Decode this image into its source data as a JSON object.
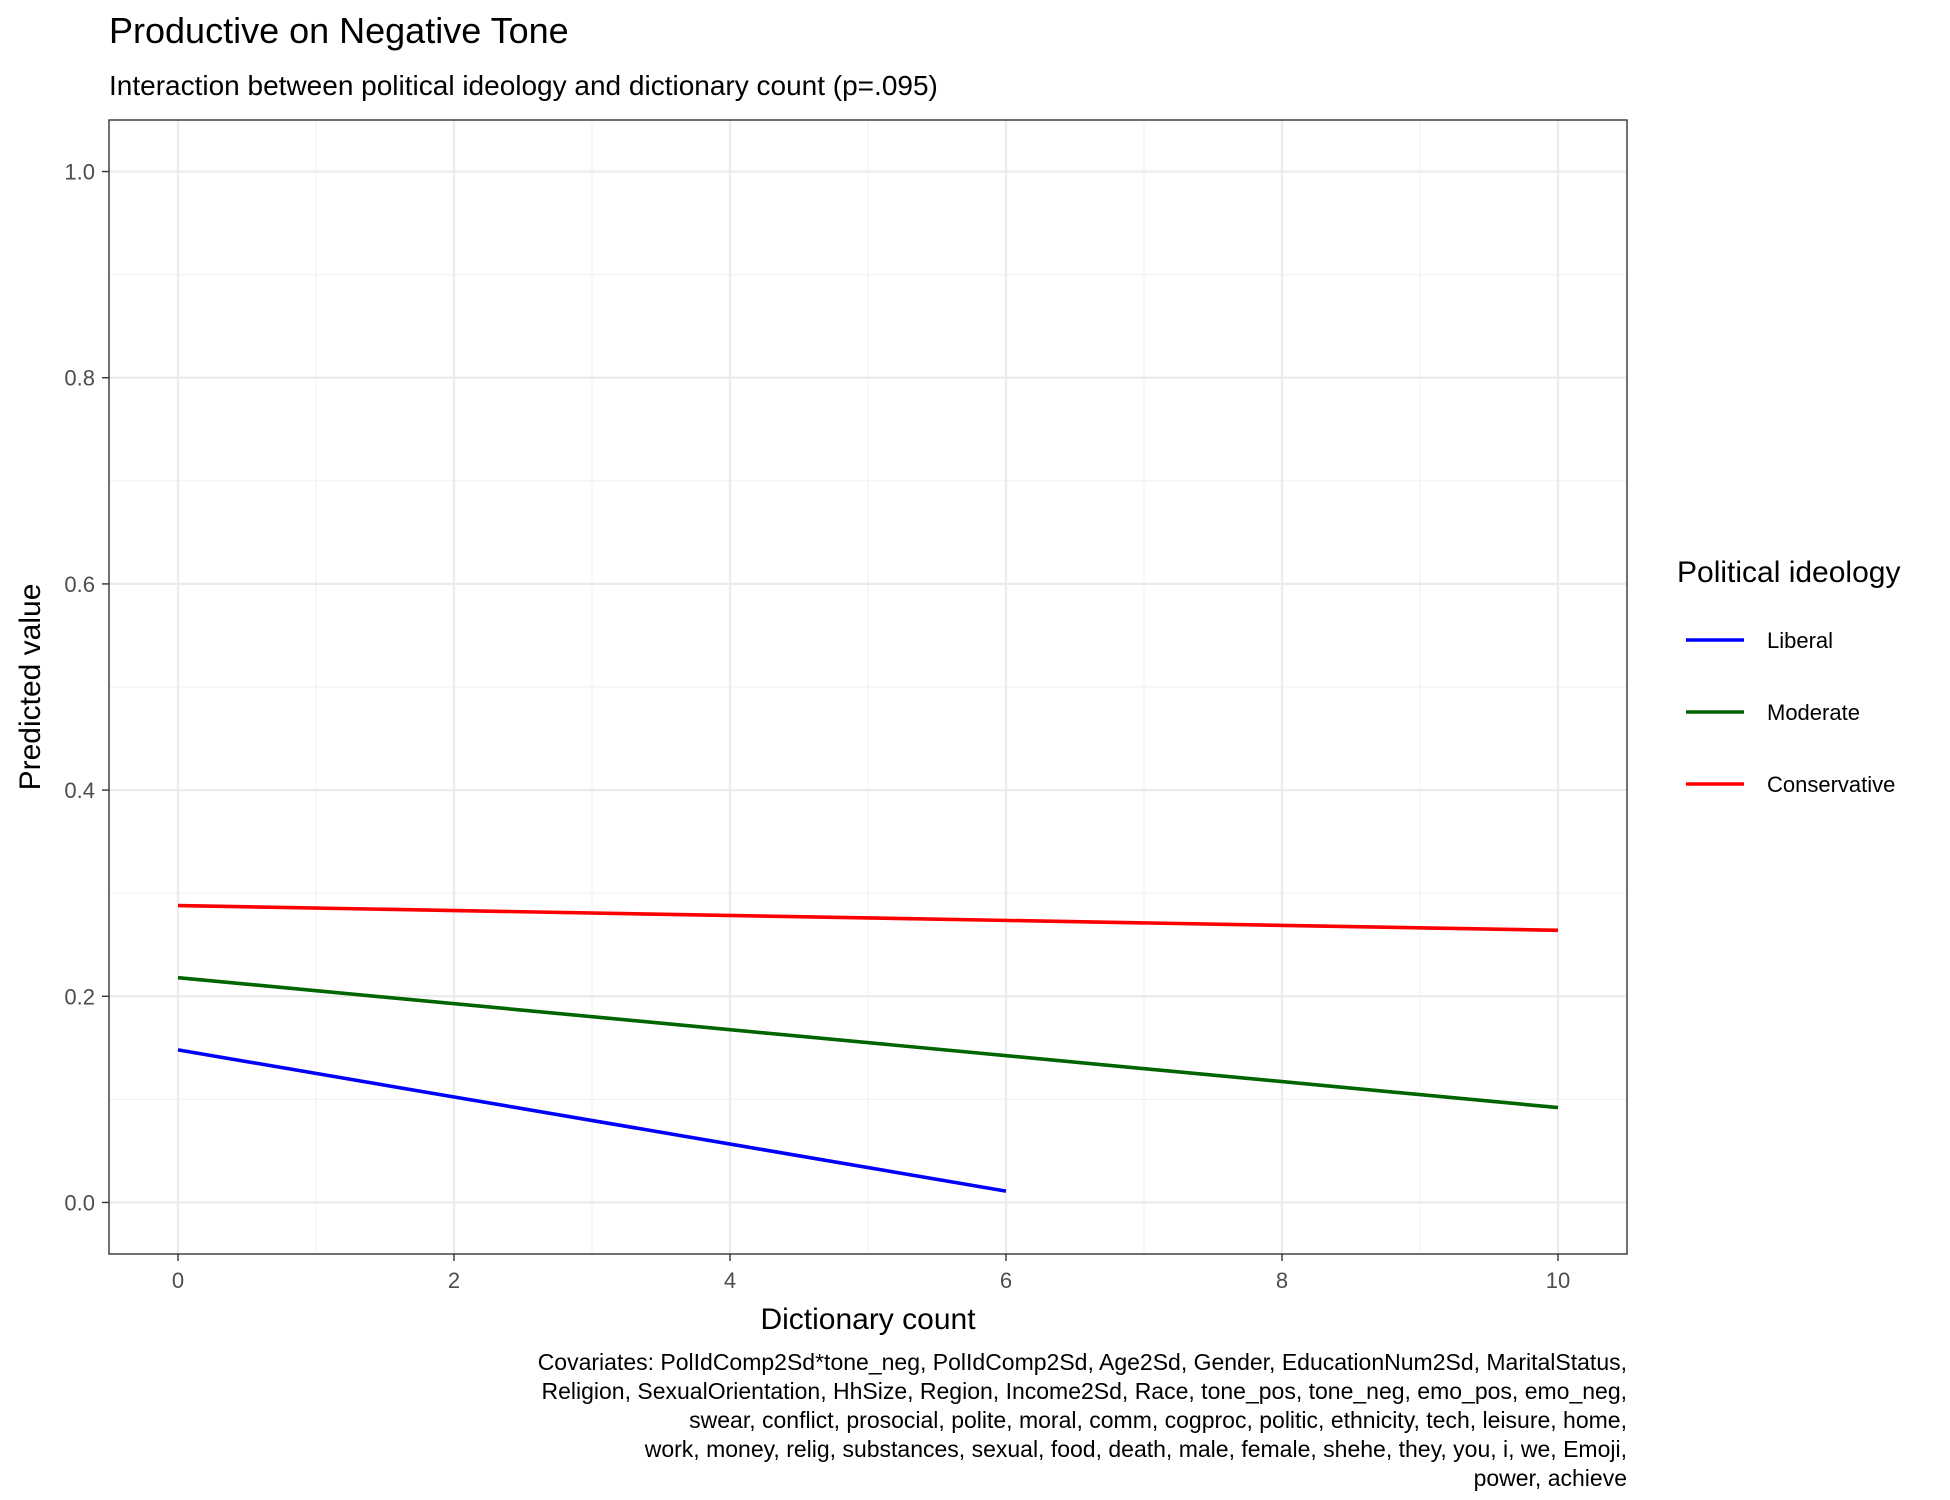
{
  "chart_data": {
    "type": "line",
    "title": "Productive on Negative Tone",
    "subtitle": "Interaction between political ideology and dictionary count (p=.095)",
    "xlabel": "Dictionary count",
    "ylabel": "Predicted value",
    "xlim": [
      -0.5,
      10.5
    ],
    "ylim": [
      -0.05,
      1.05
    ],
    "x_ticks": [
      0,
      2,
      4,
      6,
      8,
      10
    ],
    "x_tick_labels": [
      "0",
      "2",
      "4",
      "6",
      "8",
      "10"
    ],
    "y_ticks": [
      0.0,
      0.2,
      0.4,
      0.6,
      0.8,
      1.0
    ],
    "y_tick_labels": [
      "0.0",
      "0.2",
      "0.4",
      "0.6",
      "0.8",
      "1.0"
    ],
    "grid": true,
    "legend": {
      "title": "Political ideology",
      "placement": "right"
    },
    "series": [
      {
        "name": "Liberal",
        "color": "#0000ff",
        "x": [
          0,
          6
        ],
        "y": [
          0.148,
          0.011
        ]
      },
      {
        "name": "Moderate",
        "color": "#006400",
        "x": [
          0,
          10
        ],
        "y": [
          0.218,
          0.092
        ]
      },
      {
        "name": "Conservative",
        "color": "#ff0000",
        "x": [
          0,
          10
        ],
        "y": [
          0.288,
          0.264
        ]
      }
    ],
    "caption": [
      "Covariates: PolIdComp2Sd*tone_neg, PolIdComp2Sd, Age2Sd, Gender, EducationNum2Sd, MaritalStatus,",
      "Religion, SexualOrientation, HhSize, Region, Income2Sd, Race, tone_pos, tone_neg, emo_pos, emo_neg,",
      "swear, conflict, prosocial, polite, moral, comm, cogproc, politic, ethnicity, tech, leisure, home,",
      "work, money, relig, substances, sexual, food, death, male, female, shehe, they, you, i, we, Emoji,",
      "power, achieve"
    ]
  }
}
